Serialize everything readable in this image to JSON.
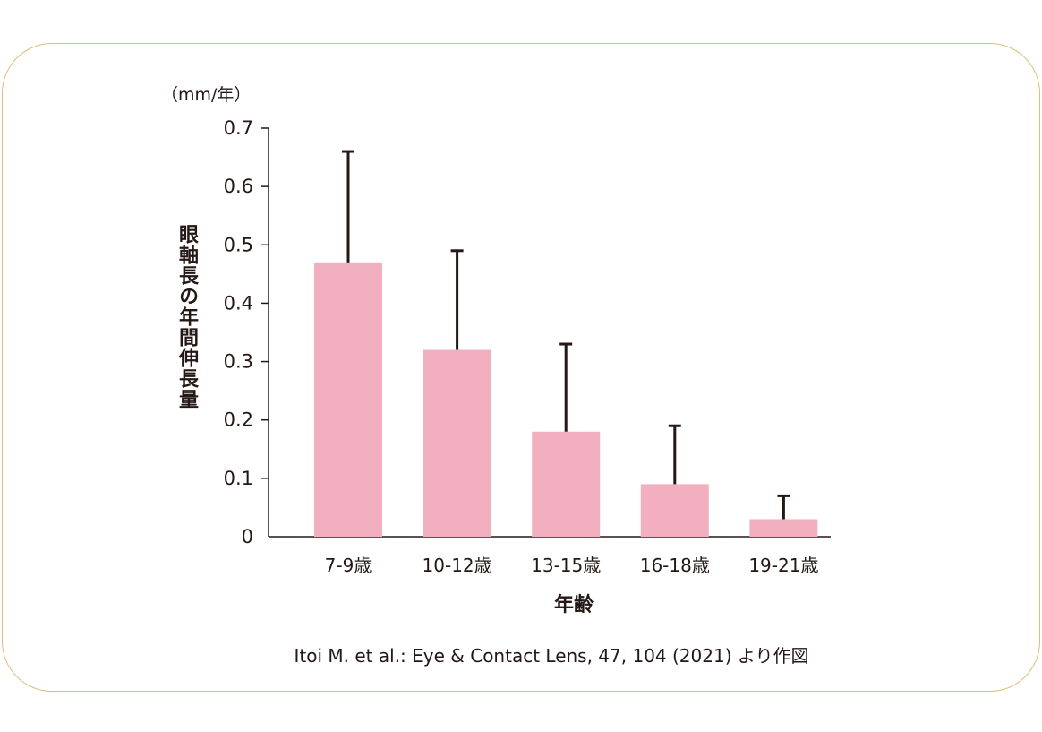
{
  "chart_data": {
    "type": "bar",
    "categories": [
      "7-9歳",
      "10-12歳",
      "13-15歳",
      "16-18歳",
      "19-21歳"
    ],
    "values": [
      0.47,
      0.32,
      0.18,
      0.09,
      0.03
    ],
    "error_upper": [
      0.66,
      0.49,
      0.33,
      0.19,
      0.07
    ],
    "ylabel": "眼軸長の年間伸長量",
    "yunit": "（mm/年）",
    "xlabel": "年齢",
    "ylim": [
      0,
      0.7
    ],
    "yticks": [
      "0",
      "0.1",
      "0.2",
      "0.3",
      "0.4",
      "0.5",
      "0.6",
      "0.7"
    ],
    "grid": false,
    "bar_color": "#f2afbf",
    "error_bar_color": "#231815"
  },
  "source_note": "Itoi M. et al.: Eye & Contact Lens, 47, 104 (2021) より作図",
  "colors": {
    "border": "#d9c07a",
    "text": "#231815"
  }
}
